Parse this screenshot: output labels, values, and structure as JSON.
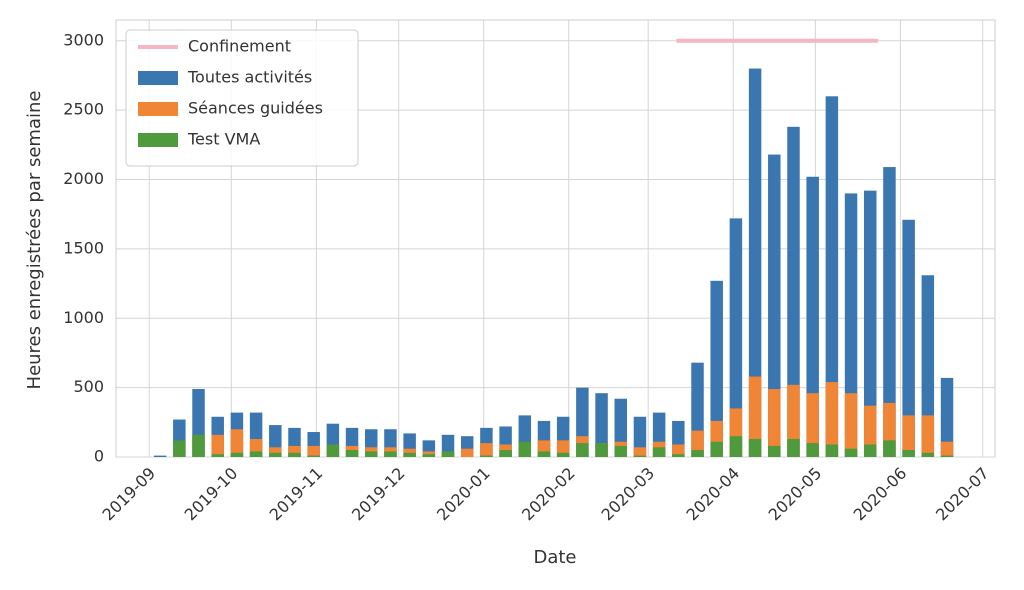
{
  "chart_data": {
    "type": "bar",
    "xlabel": "Date",
    "ylabel": "Heures enregistrées par semaine",
    "categories": [
      null,
      null,
      null,
      null,
      null,
      null,
      null,
      null,
      null,
      null,
      null,
      null,
      null,
      null,
      null,
      null,
      null,
      null,
      null,
      null,
      null,
      null,
      null,
      null,
      null,
      null,
      null,
      null,
      null,
      null,
      null,
      null,
      null,
      null,
      null,
      null,
      null,
      null,
      null,
      null,
      null,
      null
    ],
    "xlim": [
      -2.3,
      43.5
    ],
    "xticks": [
      {
        "value": -0.57,
        "label": "2019-09"
      },
      {
        "value": 3.71,
        "label": "2019-10"
      },
      {
        "value": 8.14,
        "label": "2019-11"
      },
      {
        "value": 12.43,
        "label": "2019-12"
      },
      {
        "value": 16.86,
        "label": "2020-01"
      },
      {
        "value": 21.29,
        "label": "2020-02"
      },
      {
        "value": 25.43,
        "label": "2020-03"
      },
      {
        "value": 29.86,
        "label": "2020-04"
      },
      {
        "value": 34.14,
        "label": "2020-05"
      },
      {
        "value": 38.57,
        "label": "2020-06"
      },
      {
        "value": 42.86,
        "label": "2020-07"
      }
    ],
    "ylim": [
      0,
      3150
    ],
    "yticks": [
      0,
      500,
      1000,
      1500,
      2000,
      2500,
      3000
    ],
    "grid": true,
    "legend": "upper left",
    "series": [
      {
        "name": "Confinement",
        "type": "line",
        "color": "#f4b6c2",
        "x": [
          26.9,
          37.4
        ],
        "values": [
          3000,
          3000
        ]
      },
      {
        "name": "Toutes activités",
        "color": "#3a76b0",
        "values": [
          10,
          270,
          490,
          290,
          320,
          320,
          230,
          210,
          180,
          240,
          210,
          200,
          200,
          170,
          120,
          160,
          150,
          210,
          220,
          300,
          260,
          290,
          500,
          460,
          420,
          290,
          320,
          260,
          680,
          1270,
          1720,
          2800,
          2180,
          2380,
          2020,
          2600,
          1900,
          1920,
          2090,
          1710,
          1310,
          570
        ]
      },
      {
        "name": "Séances guidées",
        "color": "#ef8535",
        "values": [
          0,
          100,
          150,
          160,
          200,
          130,
          70,
          80,
          80,
          90,
          80,
          70,
          70,
          60,
          40,
          40,
          60,
          100,
          90,
          100,
          120,
          120,
          150,
          100,
          110,
          70,
          110,
          90,
          190,
          260,
          350,
          580,
          490,
          520,
          460,
          540,
          460,
          370,
          390,
          300,
          300,
          110
        ]
      },
      {
        "name": "Test VMA",
        "color": "#4e9a3c",
        "values": [
          0,
          120,
          160,
          20,
          30,
          40,
          30,
          30,
          10,
          90,
          50,
          40,
          40,
          30,
          20,
          40,
          0,
          10,
          50,
          110,
          40,
          30,
          100,
          100,
          80,
          10,
          70,
          20,
          50,
          110,
          150,
          130,
          80,
          130,
          100,
          90,
          60,
          90,
          120,
          50,
          30,
          10
        ]
      }
    ]
  }
}
